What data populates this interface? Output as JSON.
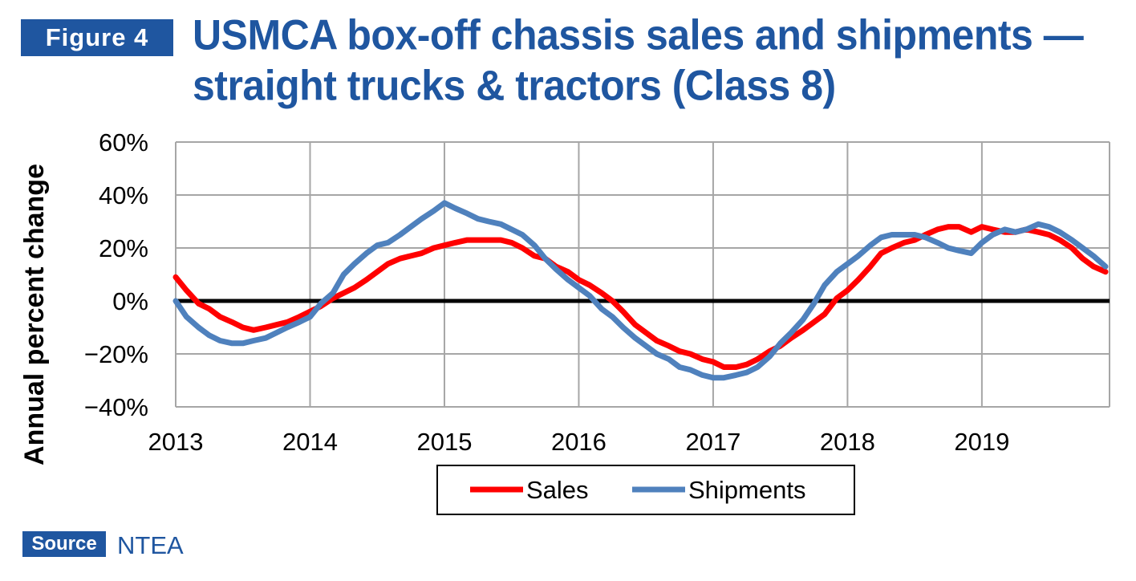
{
  "figure_label": "Figure 4",
  "title_line1": "USMCA box-off chassis sales and shipments —",
  "title_line2": "straight trucks & tractors (Class 8)",
  "source_label": "Source",
  "source_text": "NTEA",
  "chart_data": {
    "type": "line",
    "title": "USMCA box-off chassis sales and shipments — straight trucks & tractors (Class 8)",
    "xlabel": "",
    "ylabel": "Annual percent change",
    "x_tick_labels": [
      "2013",
      "2014",
      "2015",
      "2016",
      "2017",
      "2018",
      "2019"
    ],
    "y_tick_labels": [
      "60%",
      "40%",
      "20%",
      "0%",
      "−20%",
      "−40%"
    ],
    "y_tick_values": [
      60,
      40,
      20,
      0,
      -20,
      -40
    ],
    "xlim": [
      2013,
      2019.95
    ],
    "ylim": [
      -40,
      60
    ],
    "grid": true,
    "legend_position": "bottom",
    "zero_line": true,
    "series": [
      {
        "name": "Sales",
        "color": "#ff0000",
        "x": [
          2013.0,
          2013.08,
          2013.17,
          2013.25,
          2013.33,
          2013.42,
          2013.5,
          2013.58,
          2013.67,
          2013.75,
          2013.83,
          2013.92,
          2014.0,
          2014.08,
          2014.17,
          2014.25,
          2014.33,
          2014.42,
          2014.5,
          2014.58,
          2014.67,
          2014.75,
          2014.83,
          2014.92,
          2015.0,
          2015.08,
          2015.17,
          2015.25,
          2015.33,
          2015.42,
          2015.5,
          2015.58,
          2015.67,
          2015.75,
          2015.83,
          2015.92,
          2016.0,
          2016.08,
          2016.17,
          2016.25,
          2016.33,
          2016.42,
          2016.5,
          2016.58,
          2016.67,
          2016.75,
          2016.83,
          2016.92,
          2017.0,
          2017.08,
          2017.17,
          2017.25,
          2017.33,
          2017.42,
          2017.5,
          2017.58,
          2017.67,
          2017.75,
          2017.83,
          2017.92,
          2018.0,
          2018.08,
          2018.17,
          2018.25,
          2018.33,
          2018.42,
          2018.5,
          2018.58,
          2018.67,
          2018.75,
          2018.83,
          2018.92,
          2019.0,
          2019.08,
          2019.17,
          2019.25,
          2019.33,
          2019.42,
          2019.5,
          2019.58,
          2019.67,
          2019.75,
          2019.83,
          2019.92
        ],
        "y": [
          9,
          4,
          -1,
          -3,
          -6,
          -8,
          -10,
          -11,
          -10,
          -9,
          -8,
          -6,
          -4,
          -2,
          1,
          3,
          5,
          8,
          11,
          14,
          16,
          17,
          18,
          20,
          21,
          22,
          23,
          23,
          23,
          23,
          22,
          20,
          17,
          16,
          13,
          11,
          8,
          6,
          3,
          0,
          -4,
          -9,
          -12,
          -15,
          -17,
          -19,
          -20,
          -22,
          -23,
          -25,
          -25,
          -24,
          -22,
          -19,
          -17,
          -14,
          -11,
          -8,
          -5,
          1,
          4,
          8,
          13,
          18,
          20,
          22,
          23,
          25,
          27,
          28,
          28,
          26,
          28,
          27,
          26,
          26,
          27,
          26,
          25,
          23,
          20,
          16,
          13,
          11
        ]
      },
      {
        "name": "Shipments",
        "color": "#4f81bd",
        "x": [
          2013.0,
          2013.08,
          2013.17,
          2013.25,
          2013.33,
          2013.42,
          2013.5,
          2013.58,
          2013.67,
          2013.75,
          2013.83,
          2013.92,
          2014.0,
          2014.08,
          2014.17,
          2014.25,
          2014.33,
          2014.42,
          2014.5,
          2014.58,
          2014.67,
          2014.75,
          2014.83,
          2014.92,
          2015.0,
          2015.08,
          2015.17,
          2015.25,
          2015.33,
          2015.42,
          2015.5,
          2015.58,
          2015.67,
          2015.75,
          2015.83,
          2015.92,
          2016.0,
          2016.08,
          2016.17,
          2016.25,
          2016.33,
          2016.42,
          2016.5,
          2016.58,
          2016.67,
          2016.75,
          2016.83,
          2016.92,
          2017.0,
          2017.08,
          2017.17,
          2017.25,
          2017.33,
          2017.42,
          2017.5,
          2017.58,
          2017.67,
          2017.75,
          2017.83,
          2017.92,
          2018.0,
          2018.08,
          2018.17,
          2018.25,
          2018.33,
          2018.42,
          2018.5,
          2018.58,
          2018.67,
          2018.75,
          2018.83,
          2018.92,
          2019.0,
          2019.08,
          2019.17,
          2019.25,
          2019.33,
          2019.42,
          2019.5,
          2019.58,
          2019.67,
          2019.75,
          2019.83,
          2019.92
        ],
        "y": [
          0,
          -6,
          -10,
          -13,
          -15,
          -16,
          -16,
          -15,
          -14,
          -12,
          -10,
          -8,
          -6,
          -1,
          3,
          10,
          14,
          18,
          21,
          22,
          25,
          28,
          31,
          34,
          37,
          35,
          33,
          31,
          30,
          29,
          27,
          25,
          21,
          16,
          12,
          8,
          5,
          2,
          -3,
          -6,
          -10,
          -14,
          -17,
          -20,
          -22,
          -25,
          -26,
          -28,
          -29,
          -29,
          -28,
          -27,
          -25,
          -21,
          -16,
          -12,
          -7,
          -1,
          6,
          11,
          14,
          17,
          21,
          24,
          25,
          25,
          25,
          24,
          22,
          20,
          19,
          18,
          22,
          25,
          27,
          26,
          27,
          29,
          28,
          26,
          23,
          20,
          17,
          13
        ]
      }
    ]
  }
}
